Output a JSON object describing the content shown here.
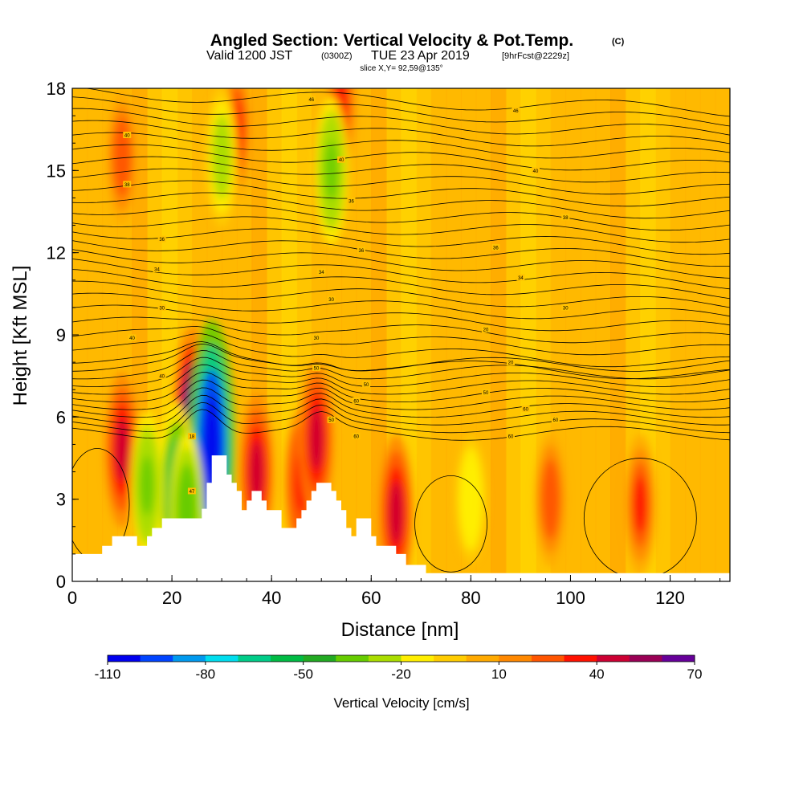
{
  "titles": {
    "main": "Angled Section: Vertical Velocity & Pot.Temp.",
    "main_suffix": "(C)",
    "valid_prefix": "Valid 1200 JST",
    "valid_zulu": "(0300Z)",
    "valid_date": "TUE 23 Apr 2019",
    "valid_fcst": "[9hrFcst@2229z]",
    "slice": "slice X,Y= 92,59@135°"
  },
  "chart_data": {
    "type": "heatmap",
    "xlabel": "Distance [nm]",
    "ylabel": "Height [Kft MSL]",
    "xlim": [
      0,
      132
    ],
    "ylim": [
      0,
      18
    ],
    "xticks": [
      0,
      20,
      40,
      60,
      80,
      100,
      120
    ],
    "yticks": [
      0,
      3,
      6,
      9,
      12,
      15,
      18
    ],
    "colorbar": {
      "label": "Vertical Velocity [cm/s]",
      "tick_labels": [
        "-110",
        "-80",
        "-50",
        "-20",
        "10",
        "40",
        "70"
      ],
      "colors": [
        "#0000ee",
        "#0044ff",
        "#0099ee",
        "#00ddee",
        "#00cc88",
        "#00bb44",
        "#22aa22",
        "#66cc00",
        "#aadd00",
        "#ffee00",
        "#ffcc00",
        "#ffaa00",
        "#ff8800",
        "#ff5500",
        "#ff1100",
        "#cc0033",
        "#990055",
        "#660099"
      ]
    },
    "terrain_kft": [
      [
        0,
        1.0
      ],
      [
        6,
        1.0
      ],
      [
        6,
        1.3
      ],
      [
        8,
        1.3
      ],
      [
        8,
        1.65
      ],
      [
        13,
        1.65
      ],
      [
        13,
        1.3
      ],
      [
        15,
        1.3
      ],
      [
        15,
        1.65
      ],
      [
        16,
        1.65
      ],
      [
        16,
        1.95
      ],
      [
        18,
        1.95
      ],
      [
        18,
        2.3
      ],
      [
        26,
        2.3
      ],
      [
        26,
        2.65
      ],
      [
        27,
        2.65
      ],
      [
        27,
        3.6
      ],
      [
        28,
        3.6
      ],
      [
        28,
        4.6
      ],
      [
        31,
        4.6
      ],
      [
        31,
        3.9
      ],
      [
        32,
        3.9
      ],
      [
        32,
        3.6
      ],
      [
        33,
        3.6
      ],
      [
        33,
        3.3
      ],
      [
        34,
        3.3
      ],
      [
        34,
        2.6
      ],
      [
        35,
        2.6
      ],
      [
        35,
        2.95
      ],
      [
        36,
        2.95
      ],
      [
        36,
        3.3
      ],
      [
        38,
        3.3
      ],
      [
        38,
        2.95
      ],
      [
        39,
        2.95
      ],
      [
        39,
        2.6
      ],
      [
        42,
        2.6
      ],
      [
        42,
        1.95
      ],
      [
        45,
        1.95
      ],
      [
        45,
        2.3
      ],
      [
        46,
        2.3
      ],
      [
        46,
        2.6
      ],
      [
        47,
        2.6
      ],
      [
        47,
        2.95
      ],
      [
        48,
        2.95
      ],
      [
        48,
        3.3
      ],
      [
        49,
        3.3
      ],
      [
        49,
        3.6
      ],
      [
        52,
        3.6
      ],
      [
        52,
        3.3
      ],
      [
        53,
        3.3
      ],
      [
        53,
        2.95
      ],
      [
        54,
        2.95
      ],
      [
        54,
        2.6
      ],
      [
        55,
        2.6
      ],
      [
        55,
        1.95
      ],
      [
        56,
        1.95
      ],
      [
        56,
        1.65
      ],
      [
        57,
        1.65
      ],
      [
        57,
        2.3
      ],
      [
        60,
        2.3
      ],
      [
        60,
        1.65
      ],
      [
        61,
        1.65
      ],
      [
        61,
        1.3
      ],
      [
        65,
        1.3
      ],
      [
        65,
        1.0
      ],
      [
        67,
        1.0
      ],
      [
        67,
        0.6
      ],
      [
        71,
        0.6
      ],
      [
        71,
        0.3
      ],
      [
        132,
        0.3
      ]
    ],
    "updraft_cores": [
      {
        "x": 10,
        "y": 4.8,
        "w": 40
      },
      {
        "x": 24,
        "y": 6.0,
        "w": 60
      },
      {
        "x": 37,
        "y": 4.0,
        "w": 40
      },
      {
        "x": 46,
        "y": 3.6,
        "w": 35
      },
      {
        "x": 49,
        "y": 5.2,
        "w": 40
      },
      {
        "x": 65,
        "y": 2.5,
        "w": 40
      },
      {
        "x": 96,
        "y": 3.0,
        "w": 25
      },
      {
        "x": 114,
        "y": 2.8,
        "w": 30
      },
      {
        "x": 10,
        "y": 15.5,
        "w": 25
      },
      {
        "x": 33,
        "y": 16.5,
        "w": 30
      },
      {
        "x": 54,
        "y": 17.5,
        "w": 30
      }
    ],
    "downdraft_cores": [
      {
        "x": 28,
        "y": 5.0,
        "w": -110
      },
      {
        "x": 21,
        "y": 3.2,
        "w": -60
      },
      {
        "x": 23,
        "y": 2.6,
        "w": -40
      },
      {
        "x": 30,
        "y": 15.5,
        "w": -30
      },
      {
        "x": 52,
        "y": 15.0,
        "w": -35
      },
      {
        "x": 80,
        "y": 3.0,
        "w": -20
      },
      {
        "x": 15,
        "y": 3.5,
        "w": -35
      }
    ],
    "isentrope_labels": [
      {
        "x": 48,
        "y": 17.6,
        "text": "46"
      },
      {
        "x": 89,
        "y": 17.2,
        "text": "46"
      },
      {
        "x": 11,
        "y": 16.3,
        "text": "40"
      },
      {
        "x": 54,
        "y": 15.4,
        "text": "40"
      },
      {
        "x": 93,
        "y": 15.0,
        "text": "40"
      },
      {
        "x": 11,
        "y": 14.5,
        "text": "38"
      },
      {
        "x": 56,
        "y": 13.9,
        "text": "36"
      },
      {
        "x": 99,
        "y": 13.3,
        "text": "38"
      },
      {
        "x": 18,
        "y": 12.5,
        "text": "36"
      },
      {
        "x": 58,
        "y": 12.1,
        "text": "36"
      },
      {
        "x": 85,
        "y": 12.2,
        "text": "36"
      },
      {
        "x": 17,
        "y": 11.4,
        "text": "34"
      },
      {
        "x": 50,
        "y": 11.3,
        "text": "34"
      },
      {
        "x": 90,
        "y": 11.1,
        "text": "34"
      },
      {
        "x": 18,
        "y": 10.0,
        "text": "30"
      },
      {
        "x": 52,
        "y": 10.3,
        "text": "30"
      },
      {
        "x": 99,
        "y": 10.0,
        "text": "30"
      },
      {
        "x": 12,
        "y": 8.9,
        "text": "40"
      },
      {
        "x": 49,
        "y": 8.9,
        "text": "30"
      },
      {
        "x": 83,
        "y": 9.2,
        "text": "20"
      },
      {
        "x": 18,
        "y": 7.5,
        "text": "40"
      },
      {
        "x": 49,
        "y": 7.8,
        "text": "50"
      },
      {
        "x": 88,
        "y": 8.0,
        "text": "20"
      },
      {
        "x": 59,
        "y": 7.2,
        "text": "50"
      },
      {
        "x": 83,
        "y": 6.9,
        "text": "50"
      },
      {
        "x": 57,
        "y": 6.6,
        "text": "60"
      },
      {
        "x": 91,
        "y": 6.3,
        "text": "60"
      },
      {
        "x": 52,
        "y": 5.9,
        "text": "50"
      },
      {
        "x": 97,
        "y": 5.9,
        "text": "60"
      },
      {
        "x": 24,
        "y": 5.3,
        "text": "18"
      },
      {
        "x": 57,
        "y": 5.3,
        "text": "60"
      },
      {
        "x": 88,
        "y": 5.3,
        "text": "60"
      },
      {
        "x": 24,
        "y": 3.3,
        "text": "47"
      }
    ]
  }
}
